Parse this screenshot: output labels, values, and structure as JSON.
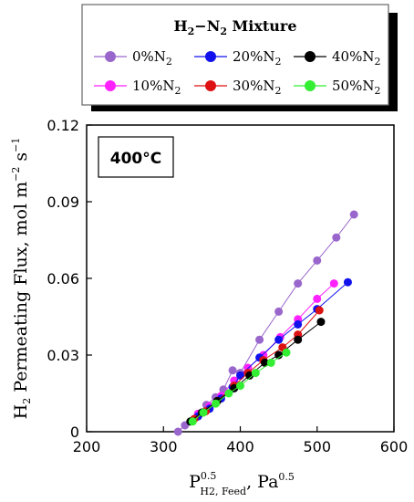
{
  "chart_data": {
    "type": "line",
    "title": "",
    "xlabel_main": "P",
    "xlabel_sup": "0.5",
    "xlabel_sub": "H2, Feed",
    "xlabel_tail": ", Pa",
    "xlabel_tail_sup": "0.5",
    "ylabel_main": "H",
    "ylabel_sub": "2",
    "ylabel_tail": " Permeating Flux, mol m",
    "ylabel_sup1": "−2",
    "ylabel_mid": " s",
    "ylabel_sup2": "−1",
    "xlim": [
      200,
      600
    ],
    "ylim": [
      0,
      0.12
    ],
    "x_ticks": [
      "200",
      "300",
      "400",
      "500",
      "600"
    ],
    "y_ticks": [
      "0",
      "0.03",
      "0.06",
      "0.09",
      "0.12"
    ],
    "annotation": "400°C",
    "legend": {
      "title_main": "H",
      "title_sub1": "2",
      "title_dash": "−N",
      "title_sub2": "2",
      "title_tail": " Mixture",
      "placement": "top"
    },
    "series": [
      {
        "name": "0%N2",
        "label_main": "0%N",
        "label_sub": "2",
        "color": "#9966cc",
        "x": [
          319,
          328,
          345,
          356,
          368,
          378,
          390,
          400,
          425,
          450,
          475,
          500,
          525,
          548
        ],
        "y": [
          0.0,
          0.0025,
          0.007,
          0.0105,
          0.0135,
          0.0165,
          0.024,
          0.023,
          0.036,
          0.047,
          0.058,
          0.067,
          0.076,
          0.085
        ]
      },
      {
        "name": "10%N2",
        "label_main": "10%N",
        "label_sub": "2",
        "color": "#ff22ff",
        "x": [
          345,
          360,
          375,
          392,
          410,
          430,
          452,
          475,
          500,
          522
        ],
        "y": [
          0.007,
          0.01,
          0.014,
          0.02,
          0.025,
          0.03,
          0.037,
          0.044,
          0.052,
          0.058
        ]
      },
      {
        "name": "20%N2",
        "label_main": "20%N",
        "label_sub": "2",
        "color": "#1111ee",
        "x": [
          345,
          360,
          375,
          390,
          400,
          425,
          450,
          475,
          500,
          540
        ],
        "y": [
          0.006,
          0.009,
          0.013,
          0.0175,
          0.022,
          0.029,
          0.036,
          0.042,
          0.048,
          0.0585
        ]
      },
      {
        "name": "30%N2",
        "label_main": "30%N",
        "label_sub": "2",
        "color": "#dd1111",
        "x": [
          340,
          355,
          370,
          392,
          410,
          430,
          455,
          475,
          503
        ],
        "y": [
          0.005,
          0.008,
          0.012,
          0.018,
          0.023,
          0.028,
          0.033,
          0.038,
          0.0475
        ]
      },
      {
        "name": "40%N2",
        "label_main": "40%N",
        "label_sub": "2",
        "color": "#000000",
        "x": [
          335,
          350,
          370,
          392,
          412,
          432,
          450,
          475,
          505
        ],
        "y": [
          0.004,
          0.0075,
          0.012,
          0.017,
          0.022,
          0.027,
          0.03,
          0.036,
          0.043
        ]
      },
      {
        "name": "50%N2",
        "label_main": "50%N",
        "label_sub": "2",
        "color": "#33ee33",
        "x": [
          338,
          352,
          368,
          385,
          400,
          420,
          440,
          460
        ],
        "y": [
          0.004,
          0.0075,
          0.011,
          0.015,
          0.018,
          0.023,
          0.027,
          0.031
        ]
      }
    ]
  }
}
